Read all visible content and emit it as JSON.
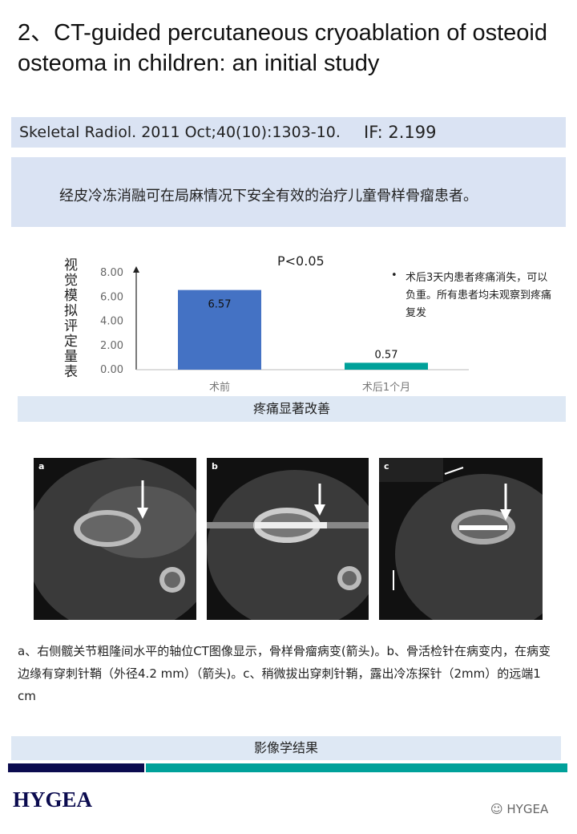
{
  "title": "2、CT-guided percutaneous cryoablation of osteoid osteoma in children: an initial study",
  "citation": {
    "journal": "Skeletal Radiol. 2011 Oct;40(10):1303-10.",
    "impact": "IF: 2.199"
  },
  "summary": "经皮冷冻消融可在局麻情况下安全有效的治疗儿童骨样骨瘤患者。",
  "chart_data": {
    "type": "bar",
    "categories": [
      "术前",
      "术后1个月"
    ],
    "values": [
      6.57,
      0.57
    ],
    "data_labels": [
      "6.57",
      "0.57"
    ],
    "colors": [
      "#4472c4",
      "#00a19a"
    ],
    "ylabel": "视觉模拟评定量表",
    "ylim": [
      0,
      8
    ],
    "yticks": [
      "0.00",
      "2.00",
      "4.00",
      "6.00",
      "8.00"
    ],
    "annotation": "P<0.05",
    "note": "术后3天内患者疼痛消失，可以负重。所有患者均未观察到疼痛复发",
    "grid": false
  },
  "chart_banner": "疼痛显著改善",
  "images": [
    {
      "label": "a"
    },
    {
      "label": "b"
    },
    {
      "label": "c"
    }
  ],
  "caption": "a、右侧髋关节粗隆间水平的轴位CT图像显示，骨样骨瘤病变(箭头)。b、骨活检针在病变内，在病变边缘有穿刺针鞘（外径4.2 mm）（箭头)。c、稍微拔出穿刺针鞘，露出冷冻探针（2mm）的远端1 cm",
  "bottom_banner": "影像学结果",
  "footer": {
    "logo": "HYGEA",
    "watermark": "HYGEA",
    "stripe_colors": [
      "#0b0b4f",
      "#00a19a"
    ]
  }
}
